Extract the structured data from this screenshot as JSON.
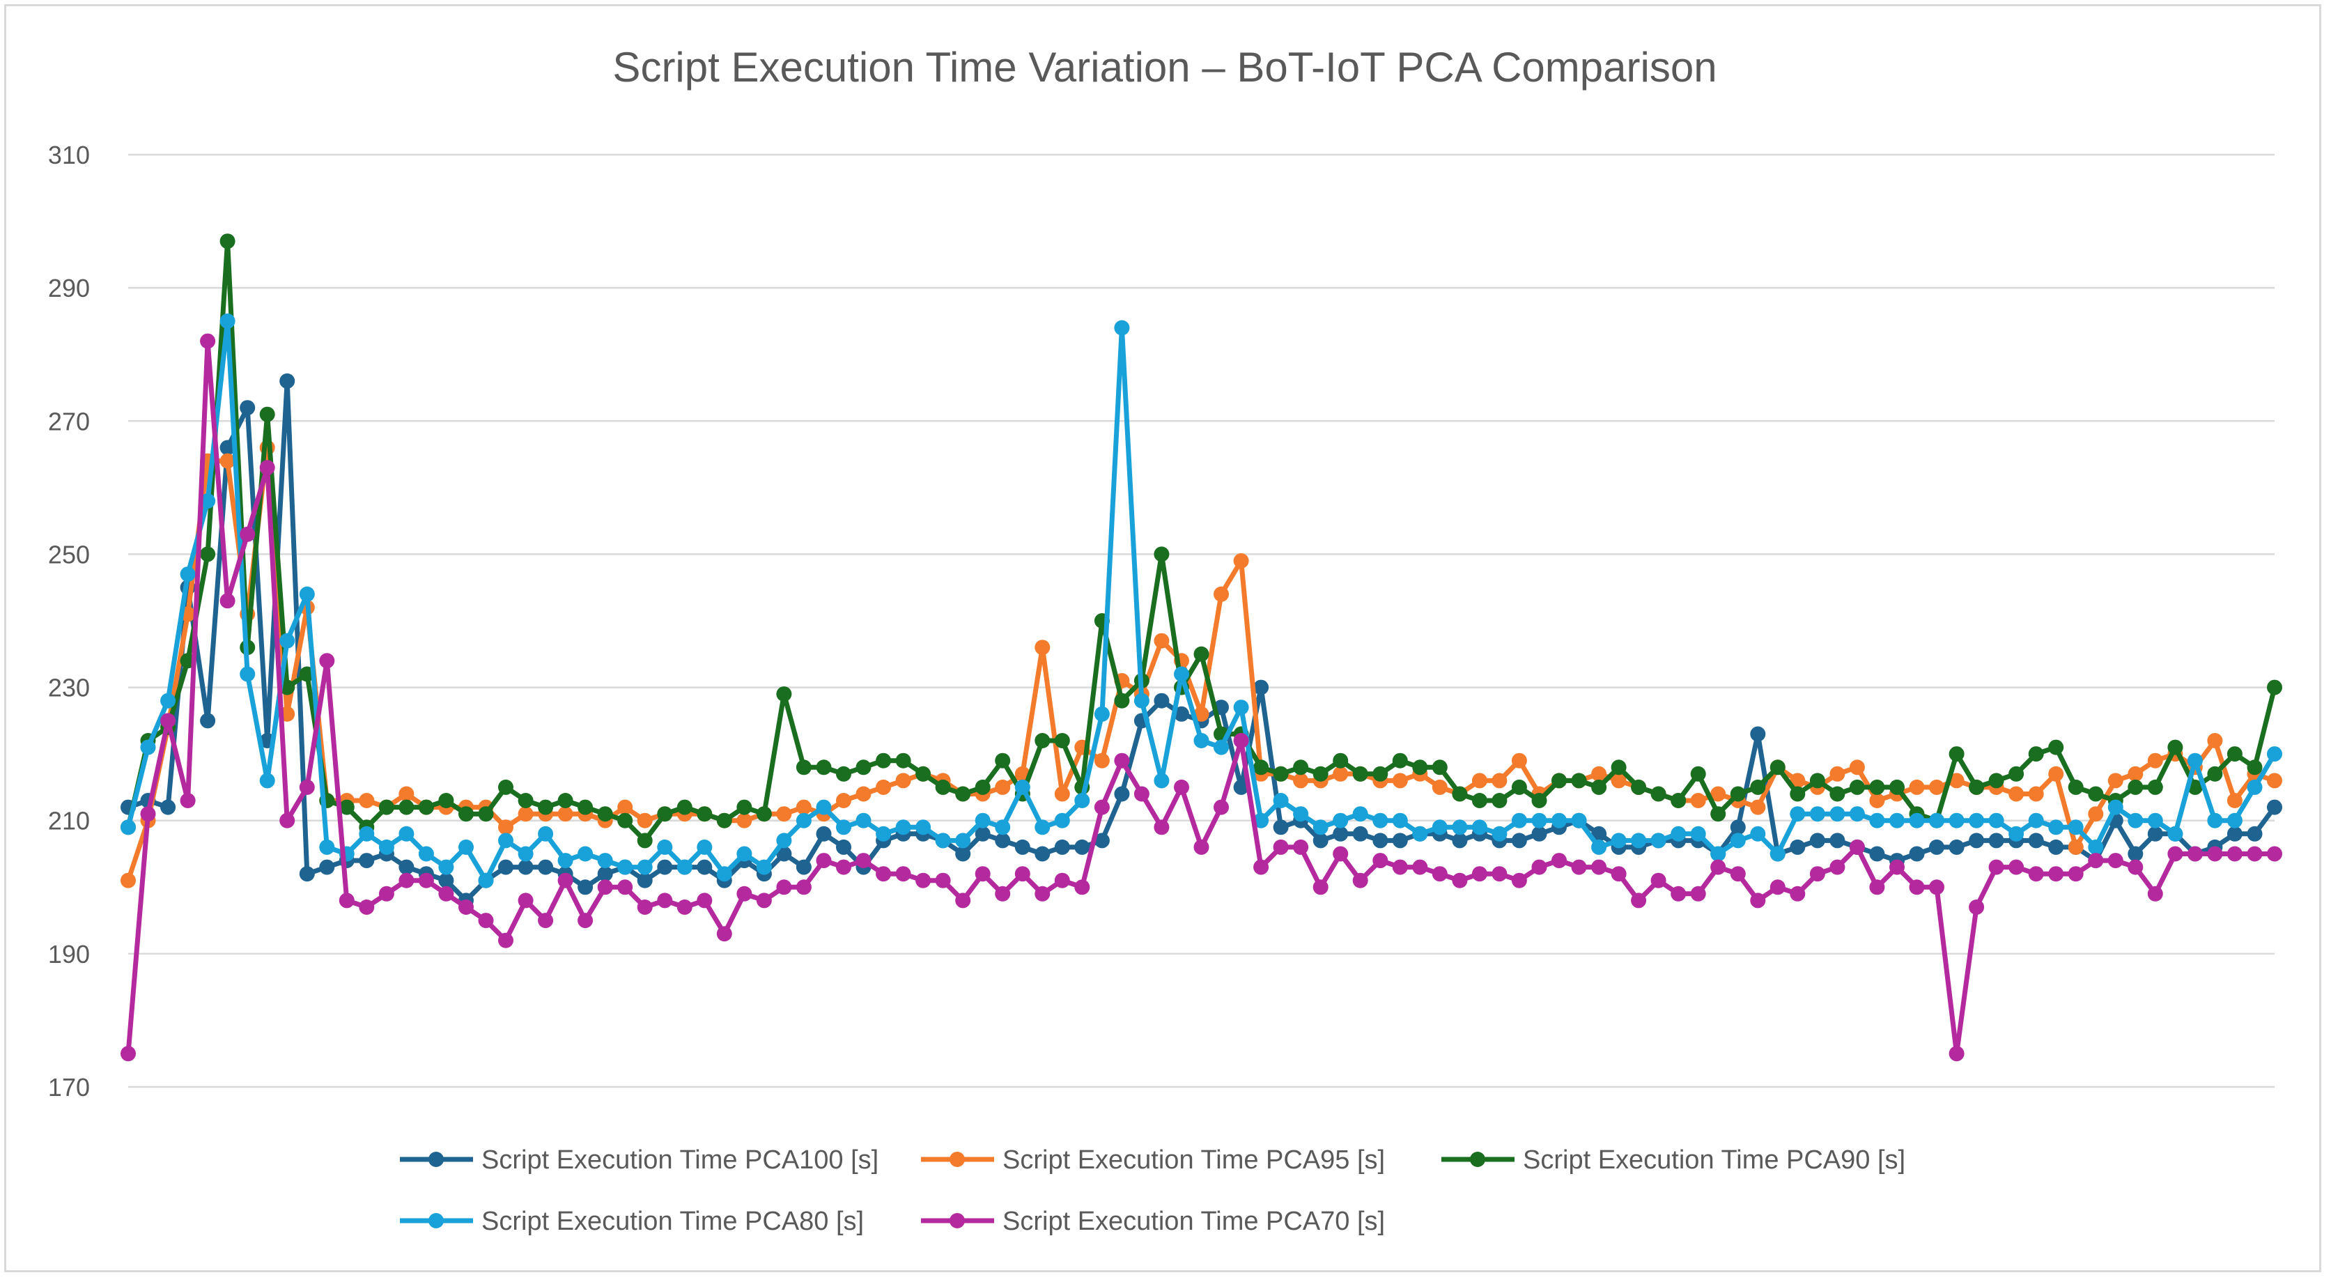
{
  "chart_data": {
    "type": "line",
    "title": "Script Execution Time Variation – BoT-IoT PCA Comparison",
    "xlabel": "",
    "ylabel": "",
    "ylim": [
      170,
      310
    ],
    "yticks": [
      170,
      190,
      210,
      230,
      250,
      270,
      290,
      310
    ],
    "grid": true,
    "legend_position": "bottom",
    "series": [
      {
        "name": "Script Execution Time PCA100 [s]",
        "color": "#1f6391",
        "values": [
          212,
          213,
          212,
          245,
          225,
          266,
          272,
          222,
          276,
          202,
          203,
          204,
          204,
          205,
          203,
          202,
          201,
          198,
          201,
          203,
          203,
          203,
          202,
          200,
          202,
          203,
          201,
          203,
          203,
          203,
          201,
          204,
          202,
          205,
          203,
          208,
          206,
          203,
          207,
          208,
          208,
          207,
          205,
          208,
          207,
          206,
          205,
          206,
          206,
          207,
          214,
          225,
          228,
          226,
          225,
          227,
          215,
          230,
          209,
          210,
          207,
          208,
          208,
          207,
          207,
          208,
          208,
          207,
          208,
          207,
          207,
          208,
          209,
          210,
          208,
          206,
          206,
          207,
          207,
          207,
          205,
          209,
          223,
          205,
          206,
          207,
          207,
          206,
          205,
          204,
          205,
          206,
          206,
          207,
          207,
          207,
          207,
          206,
          206,
          204,
          210,
          205,
          208,
          208,
          205,
          206,
          208,
          208,
          212
        ]
      },
      {
        "name": "Script Execution Time PCA95 [s]",
        "color": "#f47b2b",
        "values": [
          201,
          210,
          224,
          241,
          264,
          264,
          241,
          266,
          226,
          242,
          213,
          213,
          213,
          212,
          214,
          212,
          212,
          212,
          212,
          209,
          211,
          211,
          211,
          211,
          210,
          212,
          210,
          211,
          211,
          211,
          210,
          210,
          211,
          211,
          212,
          211,
          213,
          214,
          215,
          216,
          217,
          216,
          214,
          214,
          215,
          217,
          236,
          214,
          221,
          219,
          231,
          229,
          237,
          234,
          226,
          244,
          249,
          217,
          217,
          216,
          216,
          217,
          217,
          216,
          216,
          217,
          215,
          214,
          216,
          216,
          219,
          214,
          216,
          216,
          217,
          216,
          215,
          214,
          213,
          213,
          214,
          213,
          212,
          218,
          216,
          215,
          217,
          218,
          213,
          214,
          215,
          215,
          216,
          215,
          215,
          214,
          214,
          217,
          206,
          211,
          216,
          217,
          219,
          220,
          218,
          222,
          213,
          217,
          216
        ]
      },
      {
        "name": "Script Execution Time PCA90 [s]",
        "color": "#1a6e1f",
        "values": [
          209,
          222,
          224,
          234,
          250,
          297,
          236,
          271,
          230,
          232,
          213,
          212,
          209,
          212,
          212,
          212,
          213,
          211,
          211,
          215,
          213,
          212,
          213,
          212,
          211,
          210,
          207,
          211,
          212,
          211,
          210,
          212,
          211,
          229,
          218,
          218,
          217,
          218,
          219,
          219,
          217,
          215,
          214,
          215,
          219,
          214,
          222,
          222,
          215,
          240,
          228,
          231,
          250,
          230,
          235,
          223,
          223,
          218,
          217,
          218,
          217,
          219,
          217,
          217,
          219,
          218,
          218,
          214,
          213,
          213,
          215,
          213,
          216,
          216,
          215,
          218,
          215,
          214,
          213,
          217,
          211,
          214,
          215,
          218,
          214,
          216,
          214,
          215,
          215,
          215,
          211,
          210,
          220,
          215,
          216,
          217,
          220,
          221,
          215,
          214,
          213,
          215,
          215,
          221,
          215,
          217,
          220,
          218,
          230
        ]
      },
      {
        "name": "Script Execution Time PCA80 [s]",
        "color": "#19a2d9",
        "values": [
          209,
          221,
          228,
          247,
          258,
          285,
          232,
          216,
          237,
          244,
          206,
          205,
          208,
          206,
          208,
          205,
          203,
          206,
          201,
          207,
          205,
          208,
          204,
          205,
          204,
          203,
          203,
          206,
          203,
          206,
          202,
          205,
          203,
          207,
          210,
          212,
          209,
          210,
          208,
          209,
          209,
          207,
          207,
          210,
          209,
          215,
          209,
          210,
          213,
          226,
          284,
          228,
          216,
          232,
          222,
          221,
          227,
          210,
          213,
          211,
          209,
          210,
          211,
          210,
          210,
          208,
          209,
          209,
          209,
          208,
          210,
          210,
          210,
          210,
          206,
          207,
          207,
          207,
          208,
          208,
          205,
          207,
          208,
          205,
          211,
          211,
          211,
          211,
          210,
          210,
          210,
          210,
          210,
          210,
          210,
          208,
          210,
          209,
          209,
          206,
          212,
          210,
          210,
          208,
          219,
          210,
          210,
          215,
          220
        ]
      },
      {
        "name": "Script Execution Time PCA70 [s]",
        "color": "#b5299e",
        "values": [
          175,
          211,
          225,
          213,
          282,
          243,
          253,
          263,
          210,
          215,
          234,
          198,
          197,
          199,
          201,
          201,
          199,
          197,
          195,
          192,
          198,
          195,
          201,
          195,
          200,
          200,
          197,
          198,
          197,
          198,
          193,
          199,
          198,
          200,
          200,
          204,
          203,
          204,
          202,
          202,
          201,
          201,
          198,
          202,
          199,
          202,
          199,
          201,
          200,
          212,
          219,
          214,
          209,
          215,
          206,
          212,
          222,
          203,
          206,
          206,
          200,
          205,
          201,
          204,
          203,
          203,
          202,
          201,
          202,
          202,
          201,
          203,
          204,
          203,
          203,
          202,
          198,
          201,
          199,
          199,
          203,
          202,
          198,
          200,
          199,
          202,
          203,
          206,
          200,
          203,
          200,
          200,
          175,
          197,
          203,
          203,
          202,
          202,
          202,
          204,
          204,
          203,
          199,
          205,
          205,
          205,
          205,
          205,
          205
        ]
      }
    ]
  }
}
